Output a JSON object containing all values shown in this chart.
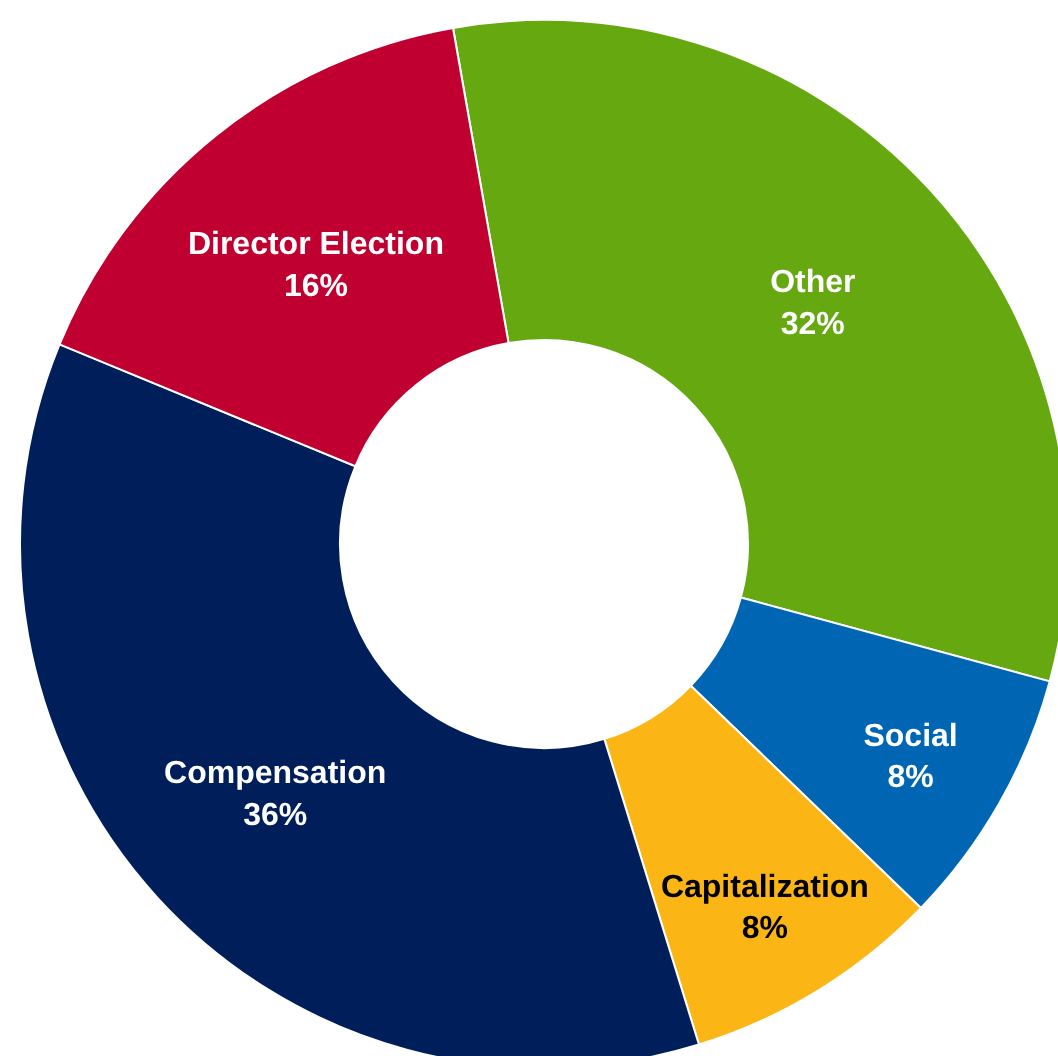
{
  "chart_data": {
    "type": "donut",
    "categories": [
      "Other",
      "Social",
      "Capitalization",
      "Compensation",
      "Director Election"
    ],
    "values": [
      32,
      8,
      8,
      36,
      16
    ],
    "colors": [
      "#66a80f",
      "#0066b3",
      "#fbb616",
      "#001e5a",
      "#c00030"
    ],
    "value_labels": [
      "32%",
      "8%",
      "8%",
      "36%",
      "16%"
    ],
    "legend": false
  }
}
